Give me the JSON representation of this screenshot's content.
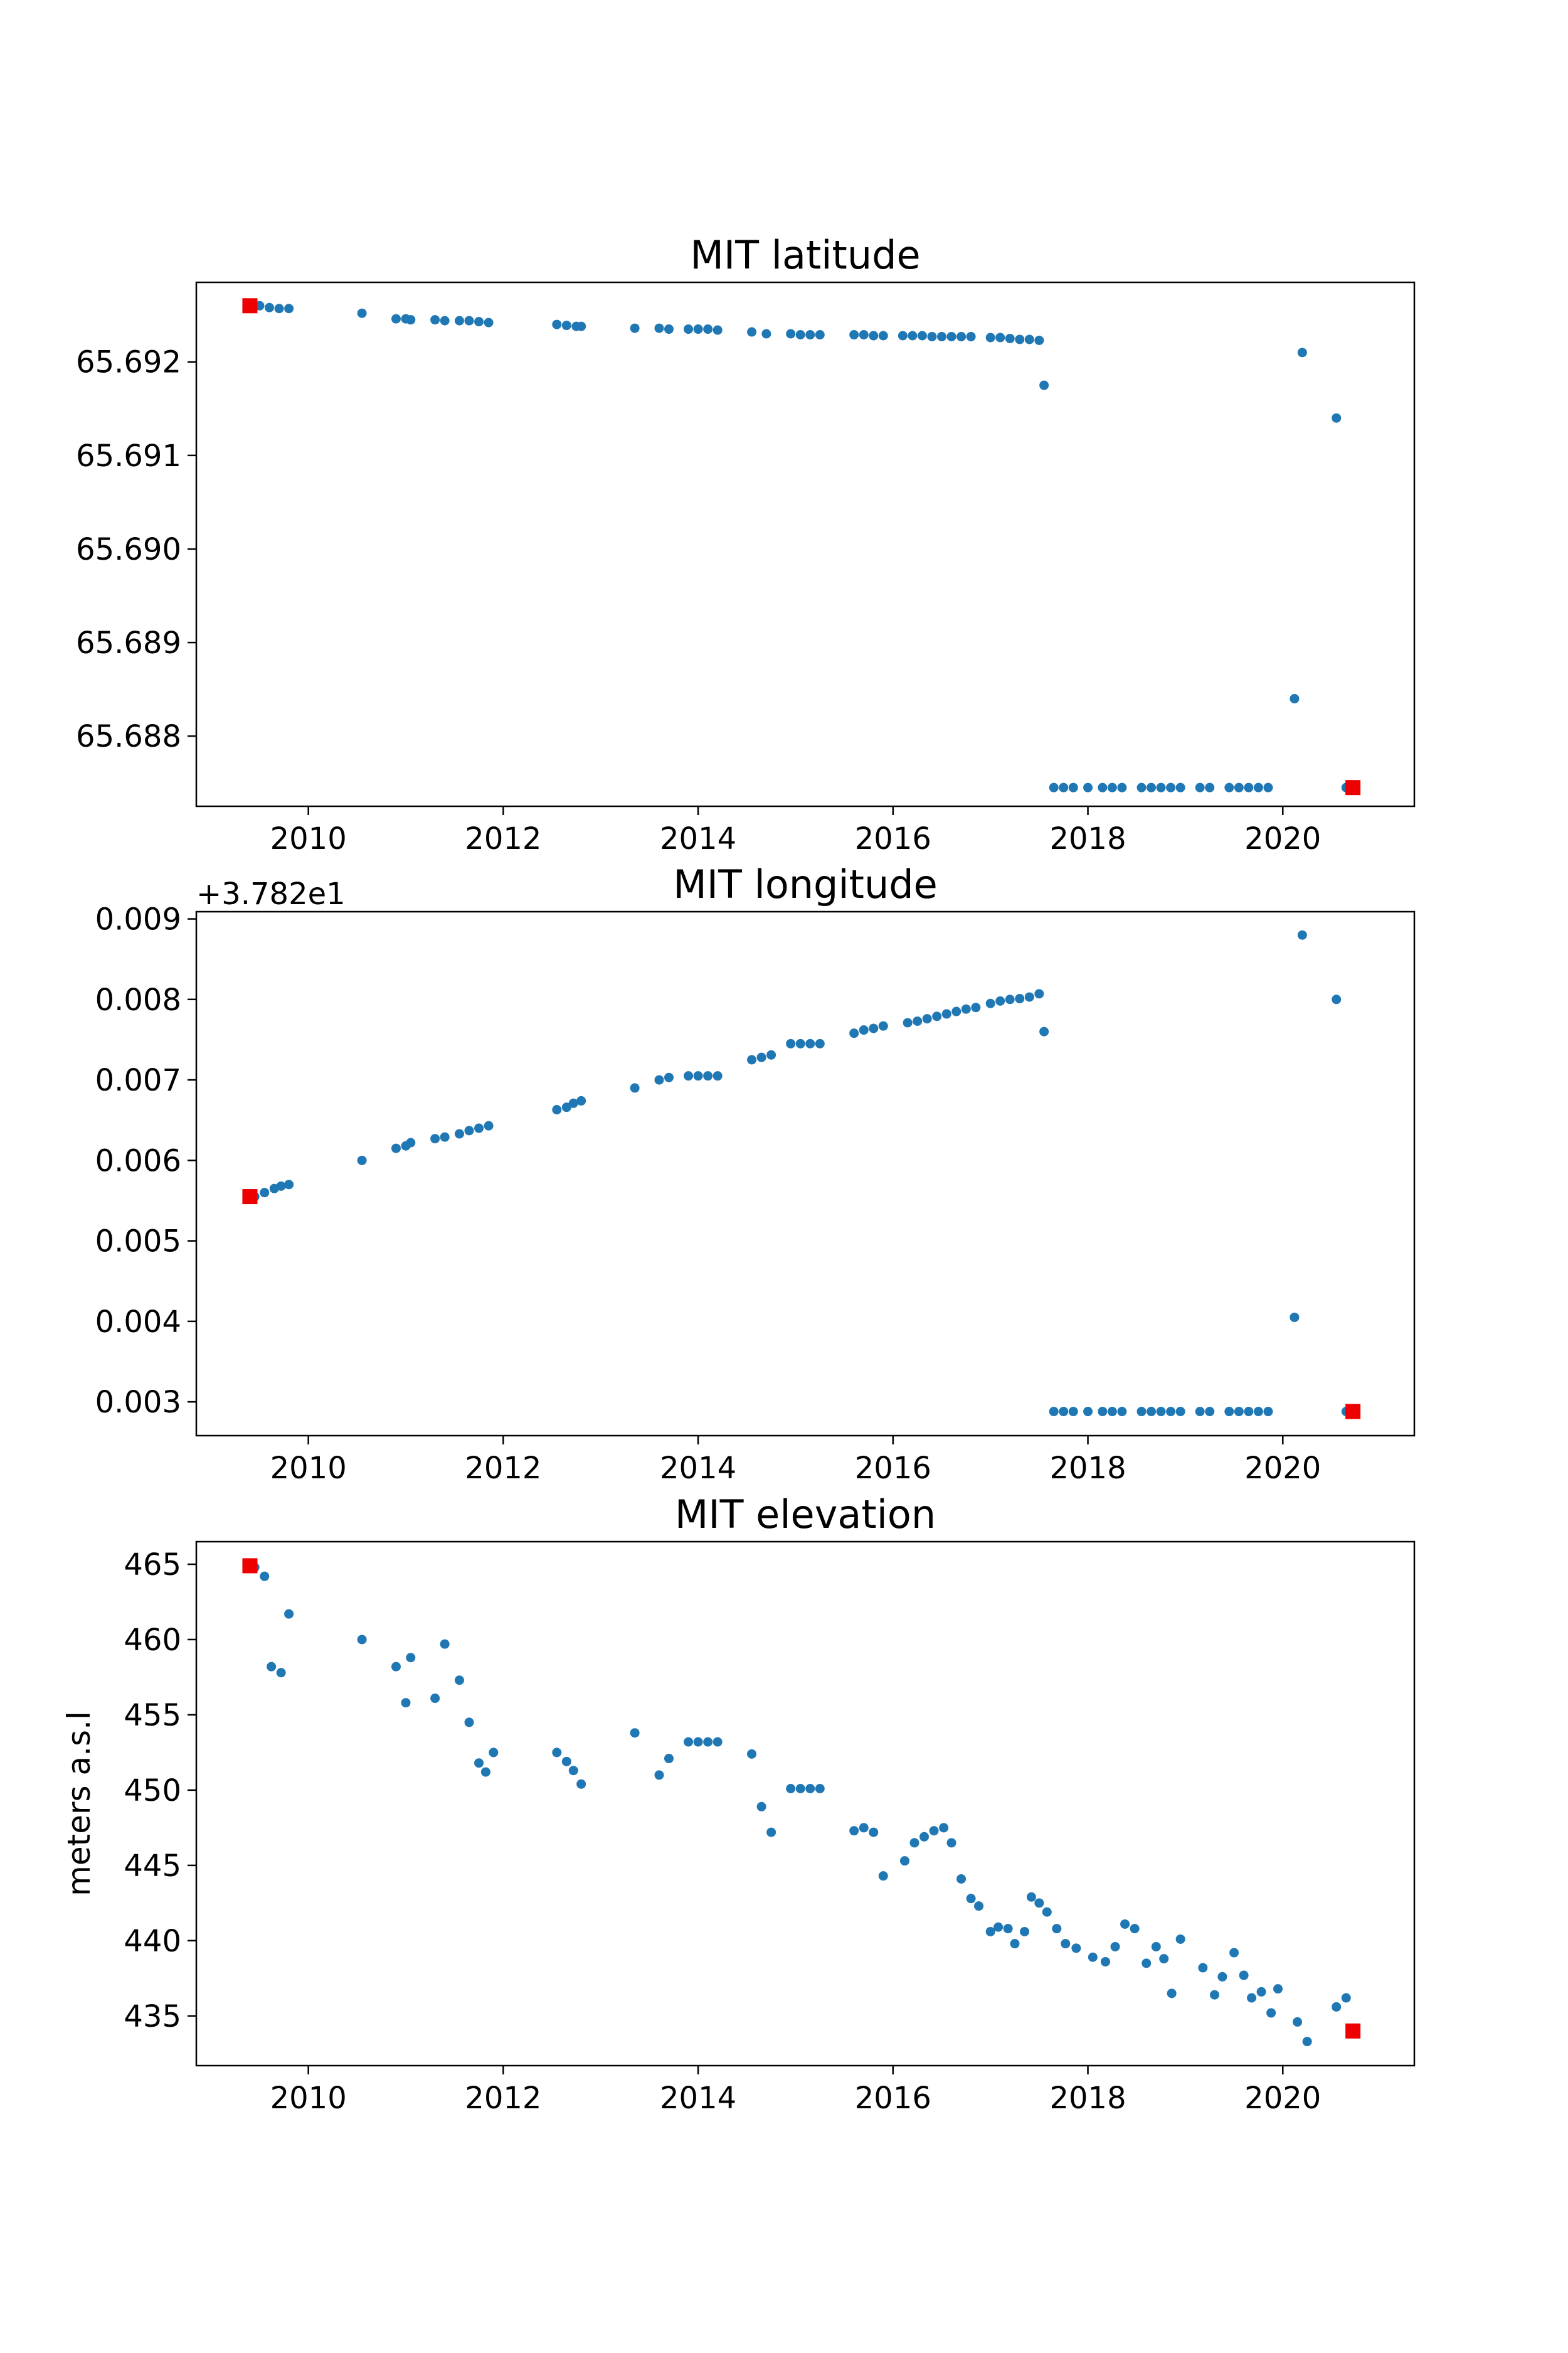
{
  "chart_data": [
    {
      "type": "scatter",
      "title": "MIT latitude",
      "xlabel": "",
      "ylabel": "",
      "xlim": [
        2008.85,
        2021.35
      ],
      "ylim": [
        65.68725,
        65.69285
      ],
      "x_ticks": [
        2010,
        2012,
        2014,
        2016,
        2018,
        2020
      ],
      "y_ticks": [
        65.688,
        65.689,
        65.69,
        65.691,
        65.692
      ],
      "y_tick_labels": [
        "65.688",
        "65.689",
        "65.690",
        "65.691",
        "65.692"
      ],
      "offset_label": "",
      "grid": false,
      "colors": {
        "points": "#1f77b4",
        "endpoints": "#ee0000"
      },
      "series": [
        {
          "values": [
            [
              2009.4,
              65.6926
            ],
            [
              2009.5,
              65.6926
            ],
            [
              2009.6,
              65.69258
            ],
            [
              2009.7,
              65.69257
            ],
            [
              2009.8,
              65.69257
            ],
            [
              2010.55,
              65.69252
            ],
            [
              2010.9,
              65.69246
            ],
            [
              2011.0,
              65.69246
            ],
            [
              2011.05,
              65.69245
            ],
            [
              2011.3,
              65.69245
            ],
            [
              2011.4,
              65.69244
            ],
            [
              2011.55,
              65.69244
            ],
            [
              2011.65,
              65.69244
            ],
            [
              2011.75,
              65.69243
            ],
            [
              2011.85,
              65.69242
            ],
            [
              2012.55,
              65.6924
            ],
            [
              2012.65,
              65.69239
            ],
            [
              2012.75,
              65.69238
            ],
            [
              2012.8,
              65.69238
            ],
            [
              2013.35,
              65.69236
            ],
            [
              2013.6,
              65.69236
            ],
            [
              2013.7,
              65.69235
            ],
            [
              2013.9,
              65.69235
            ],
            [
              2014.0,
              65.69235
            ],
            [
              2014.1,
              65.69235
            ],
            [
              2014.2,
              65.69234
            ],
            [
              2014.55,
              65.69232
            ],
            [
              2014.7,
              65.6923
            ],
            [
              2014.95,
              65.6923
            ],
            [
              2015.05,
              65.69229
            ],
            [
              2015.15,
              65.69229
            ],
            [
              2015.25,
              65.69229
            ],
            [
              2015.6,
              65.69229
            ],
            [
              2015.7,
              65.69229
            ],
            [
              2015.8,
              65.69228
            ],
            [
              2015.9,
              65.69228
            ],
            [
              2016.1,
              65.69228
            ],
            [
              2016.2,
              65.69228
            ],
            [
              2016.3,
              65.69228
            ],
            [
              2016.4,
              65.69227
            ],
            [
              2016.5,
              65.69227
            ],
            [
              2016.6,
              65.69227
            ],
            [
              2016.7,
              65.69227
            ],
            [
              2016.8,
              65.69227
            ],
            [
              2017.0,
              65.69226
            ],
            [
              2017.1,
              65.69226
            ],
            [
              2017.2,
              65.69225
            ],
            [
              2017.3,
              65.69224
            ],
            [
              2017.4,
              65.69224
            ],
            [
              2017.5,
              65.69223
            ],
            [
              2017.55,
              65.69175
            ],
            [
              2017.65,
              65.68745
            ],
            [
              2017.75,
              65.68745
            ],
            [
              2017.85,
              65.68745
            ],
            [
              2018.0,
              65.68745
            ],
            [
              2018.15,
              65.68745
            ],
            [
              2018.25,
              65.68745
            ],
            [
              2018.35,
              65.68745
            ],
            [
              2018.55,
              65.68745
            ],
            [
              2018.65,
              65.68745
            ],
            [
              2018.75,
              65.68745
            ],
            [
              2018.85,
              65.68745
            ],
            [
              2018.95,
              65.68745
            ],
            [
              2019.15,
              65.68745
            ],
            [
              2019.25,
              65.68745
            ],
            [
              2019.45,
              65.68745
            ],
            [
              2019.55,
              65.68745
            ],
            [
              2019.65,
              65.68745
            ],
            [
              2019.75,
              65.68745
            ],
            [
              2019.85,
              65.68745
            ],
            [
              2020.12,
              65.6884
            ],
            [
              2020.2,
              65.6921
            ],
            [
              2020.55,
              65.6914
            ],
            [
              2020.65,
              65.68745
            ]
          ]
        },
        {
          "values": [
            [
              2009.4,
              65.6926
            ],
            [
              2020.72,
              65.68745
            ]
          ]
        }
      ]
    },
    {
      "type": "scatter",
      "title": "MIT longitude",
      "xlabel": "",
      "ylabel": "",
      "xlim": [
        2008.85,
        2021.35
      ],
      "ylim": [
        0.00258,
        0.00909
      ],
      "x_ticks": [
        2010,
        2012,
        2014,
        2016,
        2018,
        2020
      ],
      "y_ticks": [
        0.003,
        0.004,
        0.005,
        0.006,
        0.007,
        0.008,
        0.009
      ],
      "y_tick_labels": [
        "0.003",
        "0.004",
        "0.005",
        "0.006",
        "0.007",
        "0.008",
        "0.009"
      ],
      "offset_label": "+3.782e1",
      "grid": false,
      "colors": {
        "points": "#1f77b4",
        "endpoints": "#ee0000"
      },
      "series": [
        {
          "values": [
            [
              2009.45,
              0.00555
            ],
            [
              2009.55,
              0.0056
            ],
            [
              2009.65,
              0.00565
            ],
            [
              2009.72,
              0.00568
            ],
            [
              2009.8,
              0.0057
            ],
            [
              2010.55,
              0.006
            ],
            [
              2010.9,
              0.00615
            ],
            [
              2011.0,
              0.00618
            ],
            [
              2011.05,
              0.00622
            ],
            [
              2011.3,
              0.00627
            ],
            [
              2011.4,
              0.00629
            ],
            [
              2011.55,
              0.00633
            ],
            [
              2011.65,
              0.00637
            ],
            [
              2011.75,
              0.0064
            ],
            [
              2011.85,
              0.00643
            ],
            [
              2012.55,
              0.00663
            ],
            [
              2012.65,
              0.00666
            ],
            [
              2012.72,
              0.00671
            ],
            [
              2012.8,
              0.00674
            ],
            [
              2013.35,
              0.0069
            ],
            [
              2013.6,
              0.007
            ],
            [
              2013.7,
              0.00703
            ],
            [
              2013.9,
              0.00705
            ],
            [
              2014.0,
              0.00705
            ],
            [
              2014.1,
              0.00705
            ],
            [
              2014.2,
              0.00705
            ],
            [
              2014.55,
              0.00725
            ],
            [
              2014.65,
              0.00728
            ],
            [
              2014.75,
              0.00731
            ],
            [
              2014.95,
              0.00745
            ],
            [
              2015.05,
              0.00745
            ],
            [
              2015.15,
              0.00745
            ],
            [
              2015.25,
              0.00745
            ],
            [
              2015.6,
              0.00758
            ],
            [
              2015.7,
              0.00762
            ],
            [
              2015.8,
              0.00764
            ],
            [
              2015.9,
              0.00767
            ],
            [
              2016.15,
              0.00771
            ],
            [
              2016.25,
              0.00773
            ],
            [
              2016.35,
              0.00776
            ],
            [
              2016.45,
              0.00779
            ],
            [
              2016.55,
              0.00782
            ],
            [
              2016.65,
              0.00785
            ],
            [
              2016.75,
              0.00788
            ],
            [
              2016.85,
              0.0079
            ],
            [
              2017.0,
              0.00795
            ],
            [
              2017.1,
              0.00798
            ],
            [
              2017.2,
              0.008
            ],
            [
              2017.3,
              0.00801
            ],
            [
              2017.4,
              0.00803
            ],
            [
              2017.5,
              0.00807
            ],
            [
              2017.55,
              0.0076
            ],
            [
              2017.65,
              0.00288
            ],
            [
              2017.75,
              0.00288
            ],
            [
              2017.85,
              0.00288
            ],
            [
              2018.0,
              0.00288
            ],
            [
              2018.15,
              0.00288
            ],
            [
              2018.25,
              0.00288
            ],
            [
              2018.35,
              0.00288
            ],
            [
              2018.55,
              0.00288
            ],
            [
              2018.65,
              0.00288
            ],
            [
              2018.75,
              0.00288
            ],
            [
              2018.85,
              0.00288
            ],
            [
              2018.95,
              0.00288
            ],
            [
              2019.15,
              0.00288
            ],
            [
              2019.25,
              0.00288
            ],
            [
              2019.45,
              0.00288
            ],
            [
              2019.55,
              0.00288
            ],
            [
              2019.65,
              0.00288
            ],
            [
              2019.75,
              0.00288
            ],
            [
              2019.85,
              0.00288
            ],
            [
              2020.12,
              0.00405
            ],
            [
              2020.2,
              0.0088
            ],
            [
              2020.55,
              0.008
            ],
            [
              2020.65,
              0.00288
            ]
          ]
        },
        {
          "values": [
            [
              2009.4,
              0.00555
            ],
            [
              2020.72,
              0.00288
            ]
          ]
        }
      ]
    },
    {
      "type": "scatter",
      "title": "MIT elevation",
      "xlabel": "",
      "ylabel": "meters a.s.l",
      "xlim": [
        2008.85,
        2021.35
      ],
      "ylim": [
        431.7,
        466.5
      ],
      "x_ticks": [
        2010,
        2012,
        2014,
        2016,
        2018,
        2020
      ],
      "y_ticks": [
        435,
        440,
        445,
        450,
        455,
        460,
        465
      ],
      "y_tick_labels": [
        "435",
        "440",
        "445",
        "450",
        "455",
        "460",
        "465"
      ],
      "offset_label": "",
      "grid": false,
      "colors": {
        "points": "#1f77b4",
        "endpoints": "#ee0000"
      },
      "series": [
        {
          "values": [
            [
              2009.45,
              464.8
            ],
            [
              2009.55,
              464.2
            ],
            [
              2009.62,
              458.2
            ],
            [
              2009.72,
              457.8
            ],
            [
              2009.8,
              461.7
            ],
            [
              2010.55,
              460.0
            ],
            [
              2010.9,
              458.2
            ],
            [
              2011.0,
              455.8
            ],
            [
              2011.05,
              458.8
            ],
            [
              2011.3,
              456.1
            ],
            [
              2011.4,
              459.7
            ],
            [
              2011.55,
              457.3
            ],
            [
              2011.65,
              454.5
            ],
            [
              2011.75,
              451.8
            ],
            [
              2011.82,
              451.2
            ],
            [
              2011.9,
              452.5
            ],
            [
              2012.55,
              452.5
            ],
            [
              2012.65,
              451.9
            ],
            [
              2012.72,
              451.3
            ],
            [
              2012.8,
              450.4
            ],
            [
              2013.35,
              453.8
            ],
            [
              2013.6,
              451.0
            ],
            [
              2013.7,
              452.1
            ],
            [
              2013.9,
              453.2
            ],
            [
              2014.0,
              453.2
            ],
            [
              2014.1,
              453.2
            ],
            [
              2014.2,
              453.2
            ],
            [
              2014.55,
              452.4
            ],
            [
              2014.65,
              448.9
            ],
            [
              2014.75,
              447.2
            ],
            [
              2014.95,
              450.1
            ],
            [
              2015.05,
              450.1
            ],
            [
              2015.15,
              450.1
            ],
            [
              2015.25,
              450.1
            ],
            [
              2015.6,
              447.3
            ],
            [
              2015.7,
              447.5
            ],
            [
              2015.8,
              447.2
            ],
            [
              2015.9,
              444.3
            ],
            [
              2016.12,
              445.3
            ],
            [
              2016.22,
              446.5
            ],
            [
              2016.32,
              446.9
            ],
            [
              2016.42,
              447.3
            ],
            [
              2016.52,
              447.5
            ],
            [
              2016.6,
              446.5
            ],
            [
              2016.7,
              444.1
            ],
            [
              2016.8,
              442.8
            ],
            [
              2016.88,
              442.3
            ],
            [
              2017.0,
              440.6
            ],
            [
              2017.08,
              440.9
            ],
            [
              2017.18,
              440.8
            ],
            [
              2017.25,
              439.8
            ],
            [
              2017.35,
              440.6
            ],
            [
              2017.42,
              442.9
            ],
            [
              2017.5,
              442.5
            ],
            [
              2017.58,
              441.9
            ],
            [
              2017.68,
              440.8
            ],
            [
              2017.77,
              439.8
            ],
            [
              2017.88,
              439.5
            ],
            [
              2018.05,
              438.9
            ],
            [
              2018.18,
              438.6
            ],
            [
              2018.28,
              439.6
            ],
            [
              2018.38,
              441.1
            ],
            [
              2018.48,
              440.8
            ],
            [
              2018.6,
              438.5
            ],
            [
              2018.7,
              439.6
            ],
            [
              2018.78,
              438.8
            ],
            [
              2018.86,
              436.5
            ],
            [
              2018.95,
              440.1
            ],
            [
              2019.18,
              438.2
            ],
            [
              2019.3,
              436.4
            ],
            [
              2019.38,
              437.6
            ],
            [
              2019.5,
              439.2
            ],
            [
              2019.6,
              437.7
            ],
            [
              2019.68,
              436.2
            ],
            [
              2019.78,
              436.6
            ],
            [
              2019.88,
              435.2
            ],
            [
              2019.95,
              436.8
            ],
            [
              2020.15,
              434.6
            ],
            [
              2020.25,
              433.3
            ],
            [
              2020.55,
              435.6
            ],
            [
              2020.65,
              436.2
            ]
          ]
        },
        {
          "values": [
            [
              2009.4,
              464.9
            ],
            [
              2020.72,
              434.0
            ]
          ]
        }
      ]
    }
  ]
}
